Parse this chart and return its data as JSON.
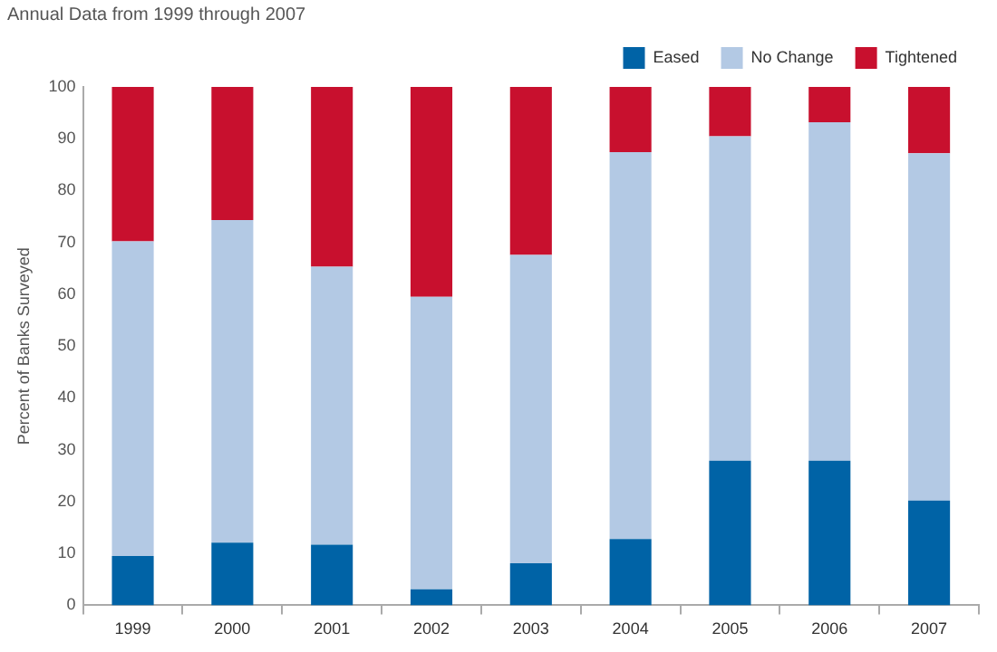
{
  "chart_data": {
    "type": "bar",
    "subtitle": "Annual Data from 1999 through 2007",
    "ylabel": "Percent of Banks Surveyed",
    "categories": [
      "1999",
      "2000",
      "2001",
      "2002",
      "2003",
      "2004",
      "2005",
      "2006",
      "2007"
    ],
    "stacked": true,
    "ylim": [
      0,
      100
    ],
    "yticks": [
      0,
      10,
      20,
      30,
      40,
      50,
      60,
      70,
      80,
      90,
      100
    ],
    "grid": false,
    "legend": "top right",
    "series": [
      {
        "name": "Eased",
        "color": "#0063a6",
        "values": [
          9.5,
          12.1,
          11.7,
          3.1,
          8.1,
          12.8,
          27.9,
          27.9,
          20.2
        ]
      },
      {
        "name": "No Change",
        "color": "#b3c9e4",
        "values": [
          60.7,
          62.2,
          53.6,
          56.4,
          59.5,
          74.6,
          62.6,
          65.3,
          67
        ]
      },
      {
        "name": "Tightened",
        "color": "#c8102e",
        "values": [
          29.8,
          25.7,
          34.7,
          40.5,
          32.4,
          12.6,
          9.5,
          6.8,
          12.8
        ]
      }
    ]
  }
}
